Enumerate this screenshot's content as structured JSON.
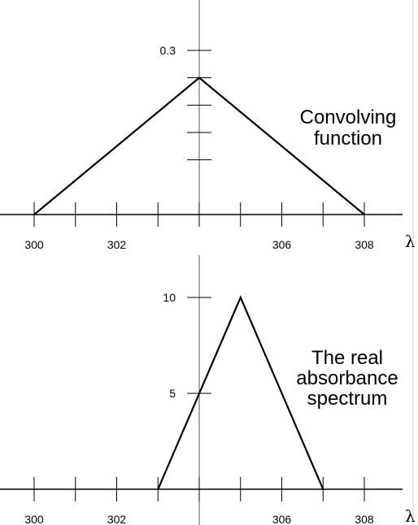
{
  "chart_data": [
    {
      "type": "line",
      "title": "",
      "xlabel": "λ",
      "ylabel": "",
      "annotation": [
        "Convolving",
        "function"
      ],
      "xlim": [
        300,
        308
      ],
      "ylim": [
        0,
        0.3
      ],
      "x_tick_values": [
        300,
        301,
        302,
        303,
        304,
        305,
        306,
        307,
        308
      ],
      "x_tick_labels": [
        "300",
        "302",
        "306",
        "308"
      ],
      "x_tick_labeled_values": [
        300,
        302,
        306,
        308
      ],
      "y_tick_values": [
        0.1,
        0.15,
        0.2,
        0.25,
        0.3
      ],
      "y_tick_labels": [
        "0.3"
      ],
      "y_tick_labeled_values": [
        0.3
      ],
      "series": [
        {
          "x": [
            300,
            304,
            308
          ],
          "y": [
            0,
            0.25,
            0
          ]
        }
      ]
    },
    {
      "type": "line",
      "title": "",
      "xlabel": "λ",
      "ylabel": "",
      "annotation": [
        "The real",
        "absorbance",
        "spectrum"
      ],
      "xlim": [
        300,
        308
      ],
      "ylim": [
        0,
        10
      ],
      "x_tick_values": [
        300,
        301,
        302,
        303,
        304,
        305,
        306,
        307,
        308
      ],
      "x_tick_labels": [
        "300",
        "302",
        "306",
        "308"
      ],
      "x_tick_labeled_values": [
        300,
        302,
        306,
        308
      ],
      "y_tick_values": [
        5,
        10
      ],
      "y_tick_labels": [
        "5",
        "10"
      ],
      "y_tick_labeled_values": [
        5,
        10
      ],
      "series": [
        {
          "x": [
            303,
            305,
            307
          ],
          "y": [
            0,
            10,
            0
          ]
        }
      ]
    }
  ]
}
